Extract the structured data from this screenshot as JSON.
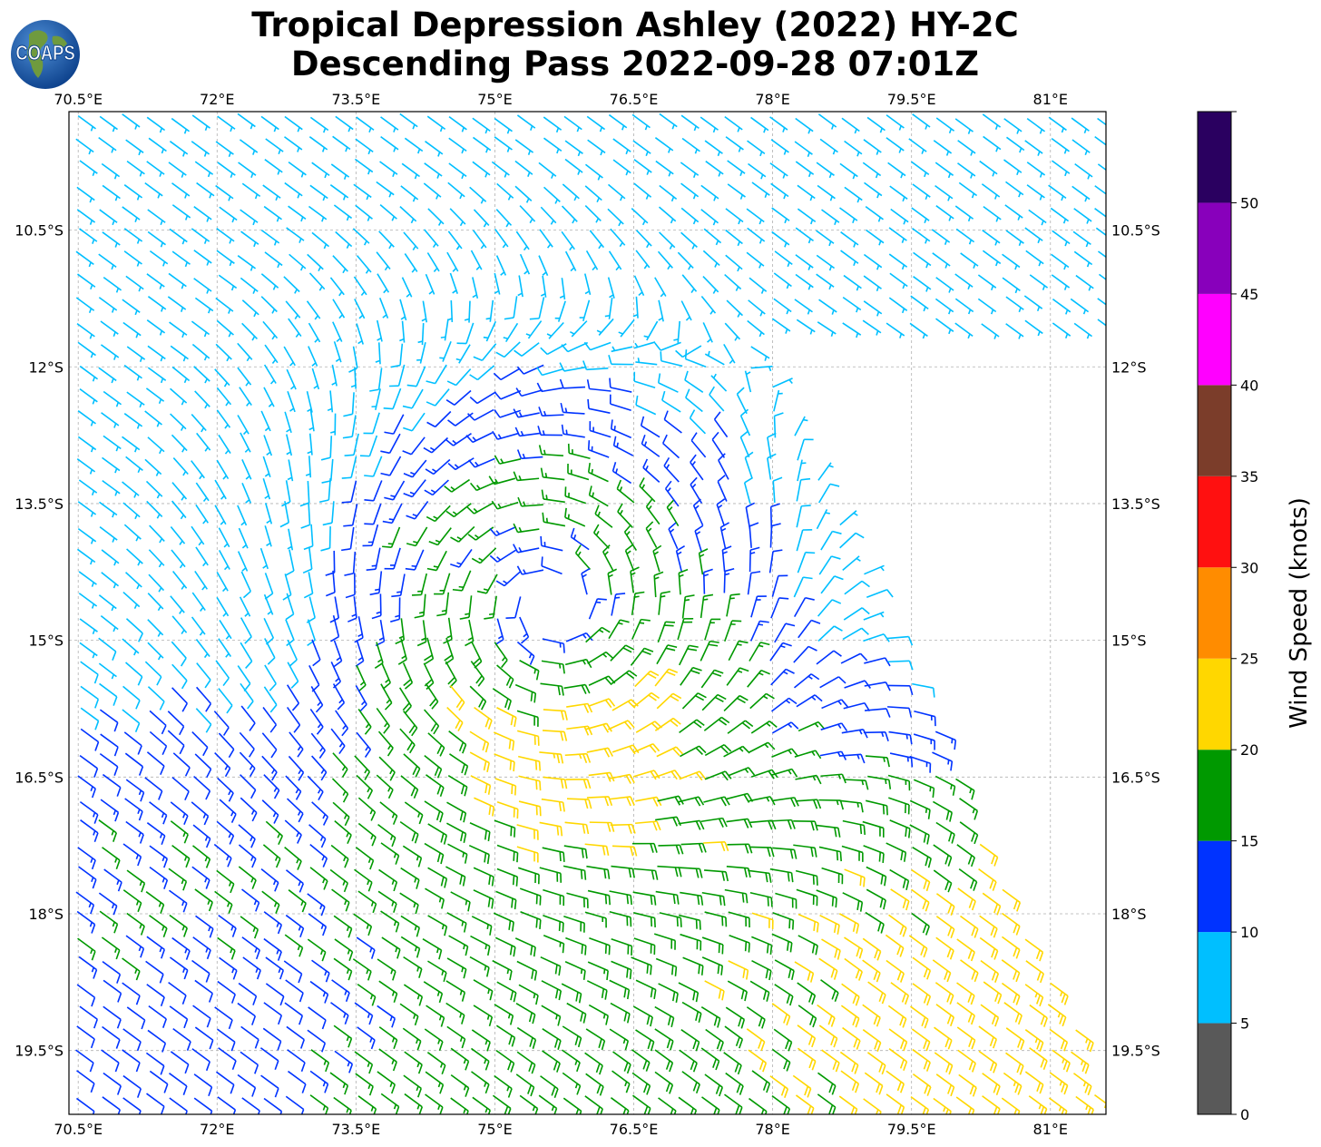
{
  "title": {
    "line1": "Tropical Depression Ashley (2022) HY-2C",
    "line2": "Descending Pass 2022-09-28 07:01Z"
  },
  "logo": {
    "text": "COAPS",
    "icon": "globe-logo-icon"
  },
  "map": {
    "lon_range": [
      70.4,
      81.6
    ],
    "lat_range": [
      -20.2,
      -9.2
    ],
    "lon_ticks": [
      {
        "value": 70.5,
        "label": "70.5°E"
      },
      {
        "value": 72.0,
        "label": "72°E"
      },
      {
        "value": 73.5,
        "label": "73.5°E"
      },
      {
        "value": 75.0,
        "label": "75°E"
      },
      {
        "value": 76.5,
        "label": "76.5°E"
      },
      {
        "value": 78.0,
        "label": "78°E"
      },
      {
        "value": 79.5,
        "label": "79.5°E"
      },
      {
        "value": 81.0,
        "label": "81°E"
      }
    ],
    "lat_ticks": [
      {
        "value": -10.5,
        "label": "10.5°S"
      },
      {
        "value": -12.0,
        "label": "12°S"
      },
      {
        "value": -13.5,
        "label": "13.5°S"
      },
      {
        "value": -15.0,
        "label": "15°S"
      },
      {
        "value": -16.5,
        "label": "16.5°S"
      },
      {
        "value": -18.0,
        "label": "18°S"
      },
      {
        "value": -19.5,
        "label": "19.5°S"
      }
    ],
    "gridlines": true,
    "swath": {
      "description": "wind barbs over scatterometer swath",
      "storm_center": {
        "lon": 75.6,
        "lat": -14.6
      },
      "corner_east_top": {
        "lon": 77.8,
        "lat": -11.7
      },
      "corner_east_bottom": {
        "lon": 81.6,
        "lat": -19.9
      }
    }
  },
  "colorbar": {
    "label": "Wind Speed (knots)",
    "bins": [
      {
        "min": 0,
        "max": 5,
        "color": "#595959"
      },
      {
        "min": 5,
        "max": 10,
        "color": "#00bfff"
      },
      {
        "min": 10,
        "max": 15,
        "color": "#0033ff"
      },
      {
        "min": 15,
        "max": 20,
        "color": "#009900"
      },
      {
        "min": 20,
        "max": 25,
        "color": "#ffd700"
      },
      {
        "min": 25,
        "max": 30,
        "color": "#ff8c00"
      },
      {
        "min": 30,
        "max": 35,
        "color": "#ff1010"
      },
      {
        "min": 35,
        "max": 40,
        "color": "#7b3d2a"
      },
      {
        "min": 40,
        "max": 45,
        "color": "#ff00ff"
      },
      {
        "min": 45,
        "max": 50,
        "color": "#8800bb"
      },
      {
        "min": 50,
        "max": 55,
        "color": "#2a0060"
      }
    ],
    "tick_labels": [
      "0",
      "5",
      "10",
      "15",
      "20",
      "25",
      "30",
      "35",
      "40",
      "45",
      "50"
    ]
  }
}
